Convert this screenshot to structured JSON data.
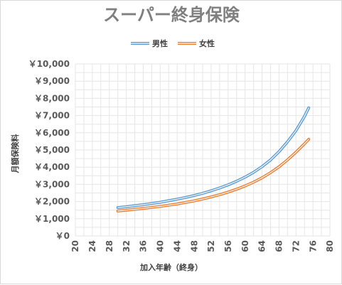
{
  "chart_data": {
    "type": "line",
    "title": "スーパー終身保険",
    "xlabel": "加入年齢（終身）",
    "ylabel": "月額保険料",
    "xlim": [
      20,
      80
    ],
    "ylim": [
      0,
      10000
    ],
    "x_ticks": [
      20,
      24,
      28,
      32,
      36,
      40,
      44,
      48,
      52,
      56,
      60,
      64,
      68,
      72,
      76,
      80
    ],
    "y_ticks": [
      0,
      1000,
      2000,
      3000,
      4000,
      5000,
      6000,
      7000,
      8000,
      9000,
      10000
    ],
    "y_tick_labels": [
      "￥0",
      "￥1,000",
      "￥2,000",
      "￥3,000",
      "￥4,000",
      "￥5,000",
      "￥6,000",
      "￥7,000",
      "￥8,000",
      "￥9,000",
      "￥10,000"
    ],
    "grid": true,
    "legend_position": "top",
    "series": [
      {
        "name": "男性",
        "color": "#5b9bd5",
        "x": [
          30,
          32,
          34,
          36,
          38,
          40,
          42,
          44,
          46,
          48,
          50,
          52,
          54,
          56,
          58,
          60,
          62,
          64,
          66,
          68,
          70,
          72,
          74,
          75
        ],
        "values": [
          1650,
          1700,
          1760,
          1820,
          1890,
          1960,
          2050,
          2140,
          2240,
          2350,
          2480,
          2630,
          2790,
          2970,
          3180,
          3420,
          3700,
          4030,
          4420,
          4900,
          5470,
          6130,
          6950,
          7450
        ]
      },
      {
        "name": "女性",
        "color": "#ed7d31",
        "x": [
          30,
          32,
          34,
          36,
          38,
          40,
          42,
          44,
          46,
          48,
          50,
          52,
          54,
          56,
          58,
          60,
          62,
          64,
          66,
          68,
          70,
          72,
          74,
          75
        ],
        "values": [
          1450,
          1500,
          1550,
          1600,
          1660,
          1720,
          1790,
          1860,
          1950,
          2040,
          2150,
          2270,
          2400,
          2550,
          2720,
          2910,
          3130,
          3380,
          3680,
          4020,
          4420,
          4870,
          5360,
          5620
        ]
      }
    ]
  }
}
